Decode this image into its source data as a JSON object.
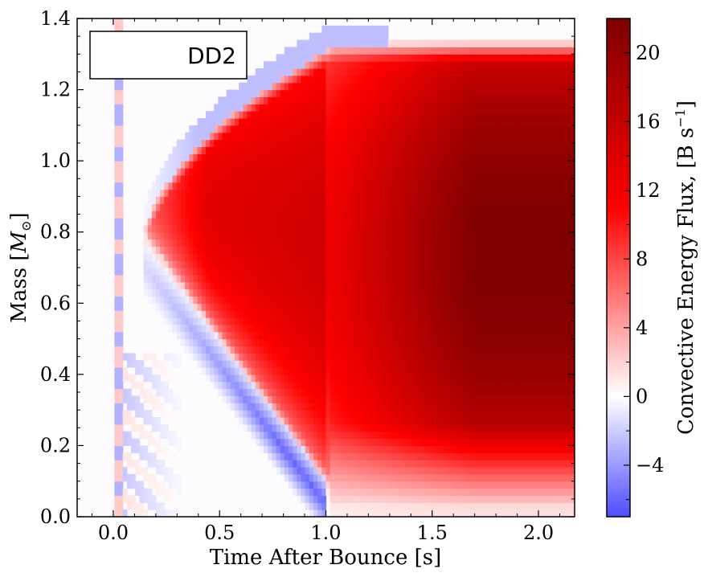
{
  "chart_data": {
    "type": "heatmap",
    "title": "",
    "xlabel": "Time After Bounce [s]",
    "ylabel": "Mass [M_⊙]",
    "ylabel_main": "Mass [",
    "ylabel_symbol": "M",
    "ylabel_subscript": "⊙",
    "ylabel_close": "]",
    "xlim": [
      -0.17,
      2.17
    ],
    "ylim": [
      0.0,
      1.4
    ],
    "xticks": [
      0.0,
      0.5,
      1.0,
      1.5,
      2.0
    ],
    "xtick_labels": [
      "0.0",
      "0.5",
      "1.0",
      "1.5",
      "2.0"
    ],
    "yticks": [
      0.0,
      0.2,
      0.4,
      0.6,
      0.8,
      1.0,
      1.2,
      1.4
    ],
    "ytick_labels": [
      "0.0",
      "0.2",
      "0.4",
      "0.6",
      "0.8",
      "1.0",
      "1.2",
      "1.4"
    ],
    "legend_label": "DD2",
    "legend_position": "top-left",
    "colorbar": {
      "label": "Convective Energy Flux, [B s⁻¹]",
      "label_main": "Convective Energy Flux, [B s",
      "label_sup": "−1",
      "label_close": "]",
      "range": [
        -7,
        22
      ],
      "ticks": [
        -4,
        0,
        4,
        8,
        12,
        16,
        20
      ],
      "tick_labels": [
        "−4",
        "0",
        "4",
        "8",
        "12",
        "16",
        "20"
      ],
      "colormap": "seismic-like (blue-white-red)"
    },
    "features": [
      {
        "name": "early-shock-trace",
        "description_note": "narrow mixed band near t=0"
      },
      {
        "name": "convective-layer",
        "t_start": 0.15,
        "t_end": 2.17,
        "peak_value": 22
      },
      {
        "name": "negative-descending-band",
        "t_start": 0.15,
        "t_end": 1.0,
        "min_value": -7
      }
    ]
  },
  "colors": {
    "negative_max": "#4d4dff",
    "zero": "#ffffff",
    "positive_mid": "#ff0000",
    "positive_max": "#7f0000"
  }
}
